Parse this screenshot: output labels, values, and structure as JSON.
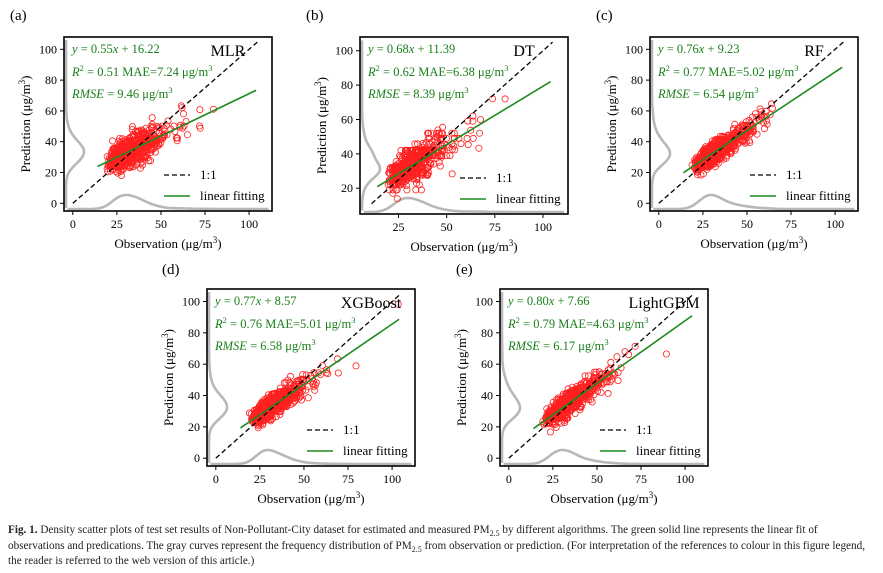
{
  "chart_data": [
    {
      "type": "scatter",
      "panel_label": "(a)",
      "model": "MLR",
      "equation": {
        "slope_text": "0.55",
        "intercept_text": "16.22"
      },
      "r2_text": "0.51",
      "mae_text": "7.24",
      "rmse_text": "9.46",
      "unit": "μg/m",
      "unit_sup": "3",
      "slope": 0.55,
      "intercept": 16.22,
      "xlabel": "Observation (μg/m",
      "ylabel": "Prediction (μg/m",
      "xlim": [
        -5,
        113
      ],
      "ylim": [
        -5,
        108
      ],
      "xticks": [
        0,
        25,
        50,
        75,
        100
      ],
      "yticks": [
        0,
        20,
        40,
        60,
        80,
        100
      ],
      "legend": [
        "1:1",
        "linear fitting"
      ],
      "points_seed": 11,
      "point_spread": 4.6,
      "n_points": 650,
      "series": [
        {
          "name": "1:1",
          "x": [
            0,
            105
          ],
          "y": [
            0,
            105
          ]
        },
        {
          "name": "linear fitting",
          "x": [
            14,
            104
          ],
          "y": [
            23.9,
            73.4
          ]
        }
      ]
    },
    {
      "type": "scatter",
      "panel_label": "(b)",
      "model": "DT",
      "equation": {
        "slope_text": "0.68",
        "intercept_text": "11.39"
      },
      "r2_text": "0.62",
      "mae_text": "6.38",
      "rmse_text": "8.39",
      "unit": "μg/m",
      "unit_sup": "3",
      "slope": 0.68,
      "intercept": 11.39,
      "xlabel": "Observation (μg/m",
      "ylabel": "Prediction (μg/m",
      "xlim": [
        5,
        113
      ],
      "ylim": [
        5,
        108
      ],
      "xticks": [
        25,
        50,
        75,
        100
      ],
      "yticks": [
        20,
        40,
        60,
        80,
        100
      ],
      "legend": [
        "1:1",
        "linear fitting"
      ],
      "points_seed": 23,
      "point_spread": 4.2,
      "n_points": 600,
      "quantized": true,
      "series": [
        {
          "name": "1:1",
          "x": [
            11,
            105
          ],
          "y": [
            11,
            105
          ]
        },
        {
          "name": "linear fitting",
          "x": [
            14,
            104
          ],
          "y": [
            20.9,
            82.1
          ]
        }
      ]
    },
    {
      "type": "scatter",
      "panel_label": "(c)",
      "model": "RF",
      "equation": {
        "slope_text": "0.76",
        "intercept_text": "9.23"
      },
      "r2_text": "0.77",
      "mae_text": "5.02",
      "rmse_text": "6.54",
      "unit": "μg/m",
      "unit_sup": "3",
      "slope": 0.76,
      "intercept": 9.23,
      "xlabel": "Observation (μg/m",
      "ylabel": "Prediction (μg/m",
      "xlim": [
        -5,
        113
      ],
      "ylim": [
        -5,
        108
      ],
      "xticks": [
        0,
        25,
        50,
        75,
        100
      ],
      "yticks": [
        0,
        20,
        40,
        60,
        80,
        100
      ],
      "legend": [
        "1:1",
        "linear fitting"
      ],
      "points_seed": 37,
      "point_spread": 3.4,
      "n_points": 650,
      "series": [
        {
          "name": "1:1",
          "x": [
            0,
            105
          ],
          "y": [
            0,
            105
          ]
        },
        {
          "name": "linear fitting",
          "x": [
            14,
            104
          ],
          "y": [
            19.9,
            88.3
          ]
        }
      ]
    },
    {
      "type": "scatter",
      "panel_label": "(d)",
      "model": "XGBoost",
      "equation": {
        "slope_text": "0.77",
        "intercept_text": "8.57"
      },
      "r2_text": "0.76",
      "mae_text": "5.01",
      "rmse_text": "6.58",
      "unit": "μg/m",
      "unit_sup": "3",
      "slope": 0.77,
      "intercept": 8.57,
      "xlabel": "Observation (μg/m",
      "ylabel": "Prediction (μg/m",
      "xlim": [
        -5,
        113
      ],
      "ylim": [
        -5,
        108
      ],
      "xticks": [
        0,
        25,
        50,
        75,
        100
      ],
      "yticks": [
        0,
        20,
        40,
        60,
        80,
        100
      ],
      "legend": [
        "1:1",
        "linear fitting"
      ],
      "points_seed": 51,
      "point_spread": 3.4,
      "n_points": 650,
      "series": [
        {
          "name": "1:1",
          "x": [
            0,
            105
          ],
          "y": [
            0,
            105
          ]
        },
        {
          "name": "linear fitting",
          "x": [
            14,
            104
          ],
          "y": [
            19.3,
            88.7
          ]
        }
      ]
    },
    {
      "type": "scatter",
      "panel_label": "(e)",
      "model": "LightGBM",
      "equation": {
        "slope_text": "0.80",
        "intercept_text": "7.66"
      },
      "r2_text": "0.79",
      "mae_text": "4.63",
      "rmse_text": "6.17",
      "unit": "μg/m",
      "unit_sup": "3",
      "slope": 0.8,
      "intercept": 7.66,
      "xlabel": "Observation (μg/m",
      "ylabel": "Prediction (μg/m",
      "xlim": [
        -5,
        113
      ],
      "ylim": [
        -5,
        108
      ],
      "xticks": [
        0,
        25,
        50,
        75,
        100
      ],
      "yticks": [
        0,
        20,
        40,
        60,
        80,
        100
      ],
      "legend": [
        "1:1",
        "linear fitting"
      ],
      "points_seed": 67,
      "point_spread": 3.2,
      "n_points": 650,
      "series": [
        {
          "name": "1:1",
          "x": [
            0,
            105
          ],
          "y": [
            0,
            105
          ]
        },
        {
          "name": "linear fitting",
          "x": [
            14,
            104
          ],
          "y": [
            18.9,
            90.9
          ]
        }
      ]
    }
  ],
  "colors": {
    "points": "#ff2020",
    "fit": "#1f8a1f",
    "stats": "#1a7f1a",
    "density": "#b8b8b8",
    "identity": "#000000"
  },
  "caption": {
    "label": "Fig. 1.",
    "part1": "Density scatter plots of test set results of Non-Pollutant-City dataset for estimated and measured PM",
    "sub1": "2.5",
    "part2": " by different algorithms. The green solid line represents the linear fit of observations and predications. The gray curves represent the frequency distribution of PM",
    "sub2": "2.5",
    "part3": " from observation or prediction. (For interpretation of the references to colour in this figure legend, the reader is referred to the web version of this article.)"
  }
}
